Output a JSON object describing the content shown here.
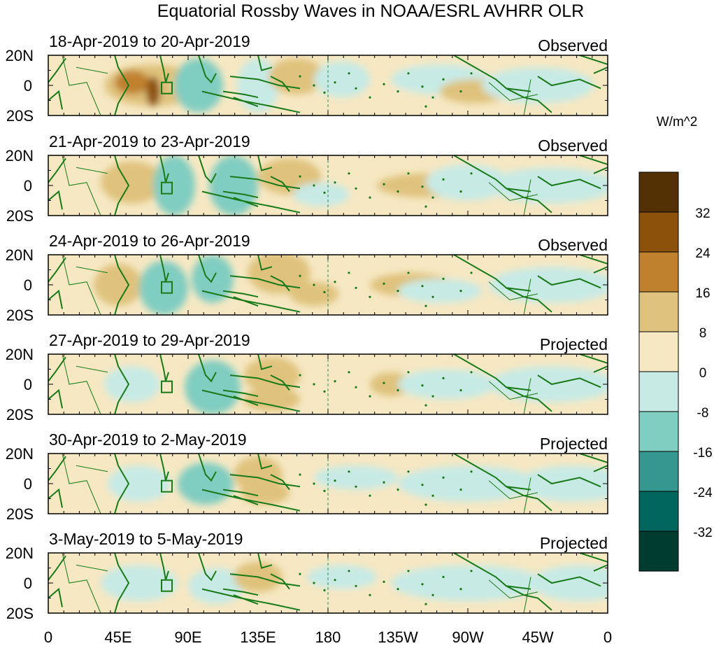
{
  "title": "Equatorial Rossby Waves in NOAA/ESRL AVHRR OLR",
  "colorbar": {
    "units": "W/m^2",
    "levels": [
      "32",
      "24",
      "16",
      "8",
      "0",
      "-8",
      "-16",
      "-24",
      "-32"
    ],
    "colors": [
      "#543005",
      "#8c510a",
      "#bf812d",
      "#dfc27d",
      "#f6e8c3",
      "#c7eae5",
      "#80cdc1",
      "#35978f",
      "#01665e",
      "#003c30"
    ]
  },
  "land_color": "#1a7a1a",
  "dateline_color": "#2e8b57",
  "x_axis": {
    "ticks": [
      "0",
      "45E",
      "90E",
      "135E",
      "180",
      "135W",
      "90W",
      "45W",
      "0"
    ]
  },
  "y_axis": {
    "ticks": [
      "20N",
      "0",
      "20S"
    ]
  },
  "panels": [
    {
      "dates": "18-Apr-2019 to 20-Apr-2019",
      "status": "Observed"
    },
    {
      "dates": "21-Apr-2019 to 23-Apr-2019",
      "status": "Observed"
    },
    {
      "dates": "24-Apr-2019 to 26-Apr-2019",
      "status": "Observed"
    },
    {
      "dates": "27-Apr-2019 to 29-Apr-2019",
      "status": "Projected"
    },
    {
      "dates": "30-Apr-2019 to 2-May-2019",
      "status": "Projected"
    },
    {
      "dates": "3-May-2019 to 5-May-2019",
      "status": "Projected"
    }
  ]
}
